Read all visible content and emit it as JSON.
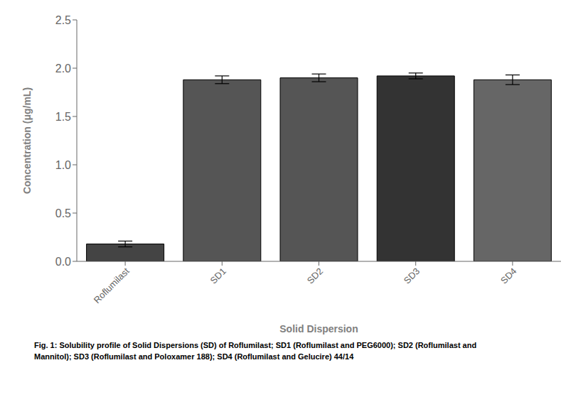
{
  "chart_data": {
    "type": "bar",
    "categories": [
      "Roflumilast",
      "SD1",
      "SD2",
      "SD3",
      "SD4"
    ],
    "values": [
      0.18,
      1.88,
      1.9,
      1.92,
      1.88
    ],
    "errors": [
      0.03,
      0.04,
      0.04,
      0.03,
      0.05
    ],
    "xlabel": "Solid Dispersion",
    "ylabel": "Concentration (μg/mL)",
    "ylim": [
      0,
      2.5
    ],
    "yticks": [
      {
        "value": 0.0,
        "label": "0.0"
      },
      0.5,
      {
        "value": 1.0,
        "label": "1.0"
      },
      1.5,
      {
        "value": 2.0,
        "label": "2.0"
      },
      2.5
    ],
    "colors": [
      "#444444",
      "#555555",
      "#555555",
      "#333333",
      "#666666"
    ],
    "grid": false,
    "caption": "Fig. 1: Solubility profile of Solid Dispersions (SD) of Roflumilast; SD1 (Roflumilast and PEG6000); SD2 (Roflumilast and\nMannitol); SD3 (Roflumilast and Poloxamer 188); SD4 (Roflumilast and Gelucire) 44/14"
  }
}
